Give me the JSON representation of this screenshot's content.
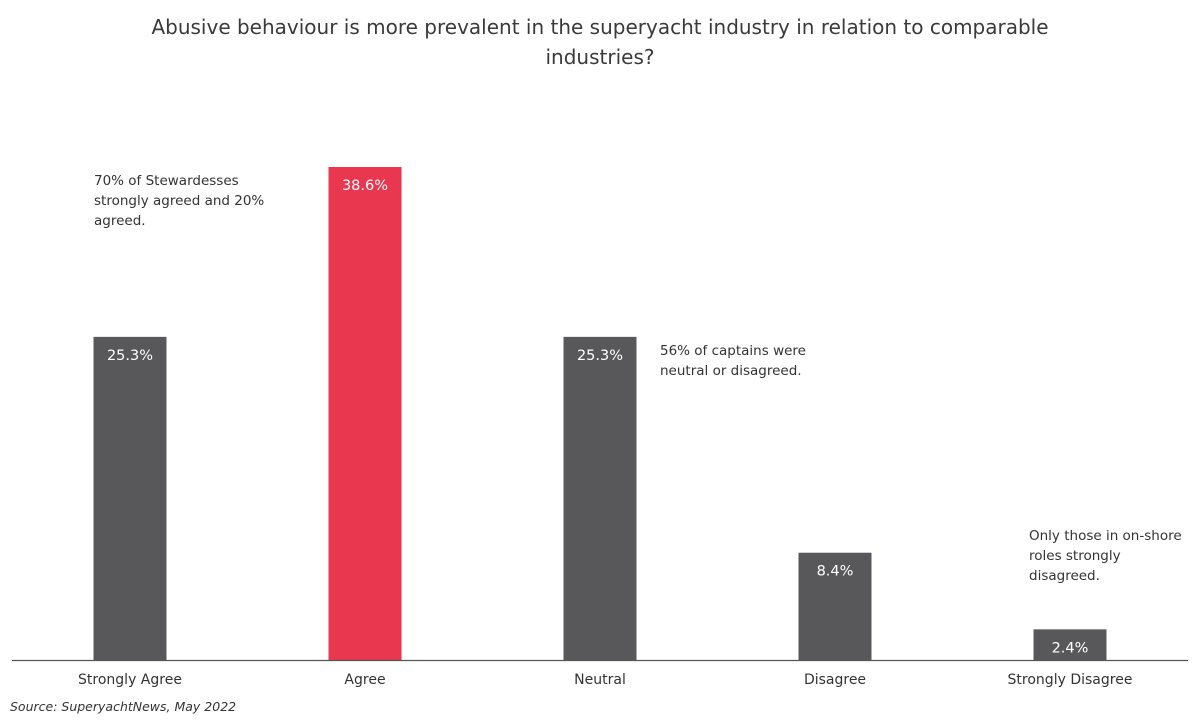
{
  "chart_data": {
    "type": "bar",
    "title": "Abusive behaviour is more prevalent in the superyacht industry in relation to comparable industries?",
    "categories": [
      "Strongly Agree",
      "Agree",
      "Neutral",
      "Disagree",
      "Strongly Disagree"
    ],
    "values": [
      25.3,
      38.6,
      25.3,
      8.4,
      2.4
    ],
    "value_labels": [
      "25.3%",
      "38.6%",
      "25.3%",
      "8.4%",
      "2.4%"
    ],
    "unit": "%",
    "ylim": [
      0,
      38.6
    ],
    "grid": false,
    "colors": {
      "default": "#58585a",
      "highlight": "#e8374f",
      "highlight_category": "Agree",
      "label_on_bar": "#ffffff",
      "axis": "#555555"
    },
    "annotations": [
      {
        "category": "Strongly Agree",
        "text": "70% of Stewardesses strongly agreed and 20% agreed."
      },
      {
        "category": "Neutral",
        "text": "56% of captains were neutral or disagreed."
      },
      {
        "category": "Strongly Disagree",
        "text": "Only those in on-shore roles strongly disagreed."
      }
    ]
  },
  "source": "Source: SuperyachtNews, May 2022"
}
